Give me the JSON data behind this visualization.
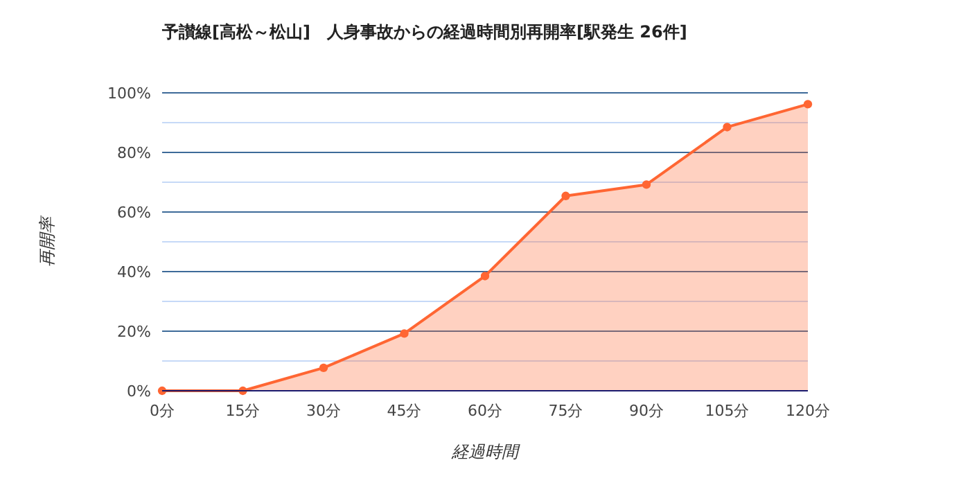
{
  "chart_data": {
    "type": "area",
    "title": "予讃線[高松～松山]　人身事故からの経過時間別再開率[駅発生 26件]",
    "xlabel": "経過時間",
    "ylabel": "再開率",
    "categories": [
      "0分",
      "15分",
      "30分",
      "45分",
      "60分",
      "75分",
      "90分",
      "105分",
      "120分"
    ],
    "series": [
      {
        "color": "#ff6633",
        "values": [
          0,
          0,
          7.7,
          19.2,
          38.5,
          65.4,
          69.2,
          88.5,
          96.2
        ]
      }
    ],
    "ylim": [
      0,
      100
    ],
    "yticks": [
      {
        "value": 0,
        "label": "0%"
      },
      {
        "value": 10,
        "label": null
      },
      {
        "value": 20,
        "label": "20%"
      },
      {
        "value": 30,
        "label": null
      },
      {
        "value": 40,
        "label": "40%"
      },
      {
        "value": 50,
        "label": null
      },
      {
        "value": 60,
        "label": "60%"
      },
      {
        "value": 70,
        "label": null
      },
      {
        "value": 80,
        "label": "80%"
      },
      {
        "value": 90,
        "label": null
      },
      {
        "value": 100,
        "label": "100%"
      }
    ],
    "grid": "y",
    "marker": "circle"
  }
}
